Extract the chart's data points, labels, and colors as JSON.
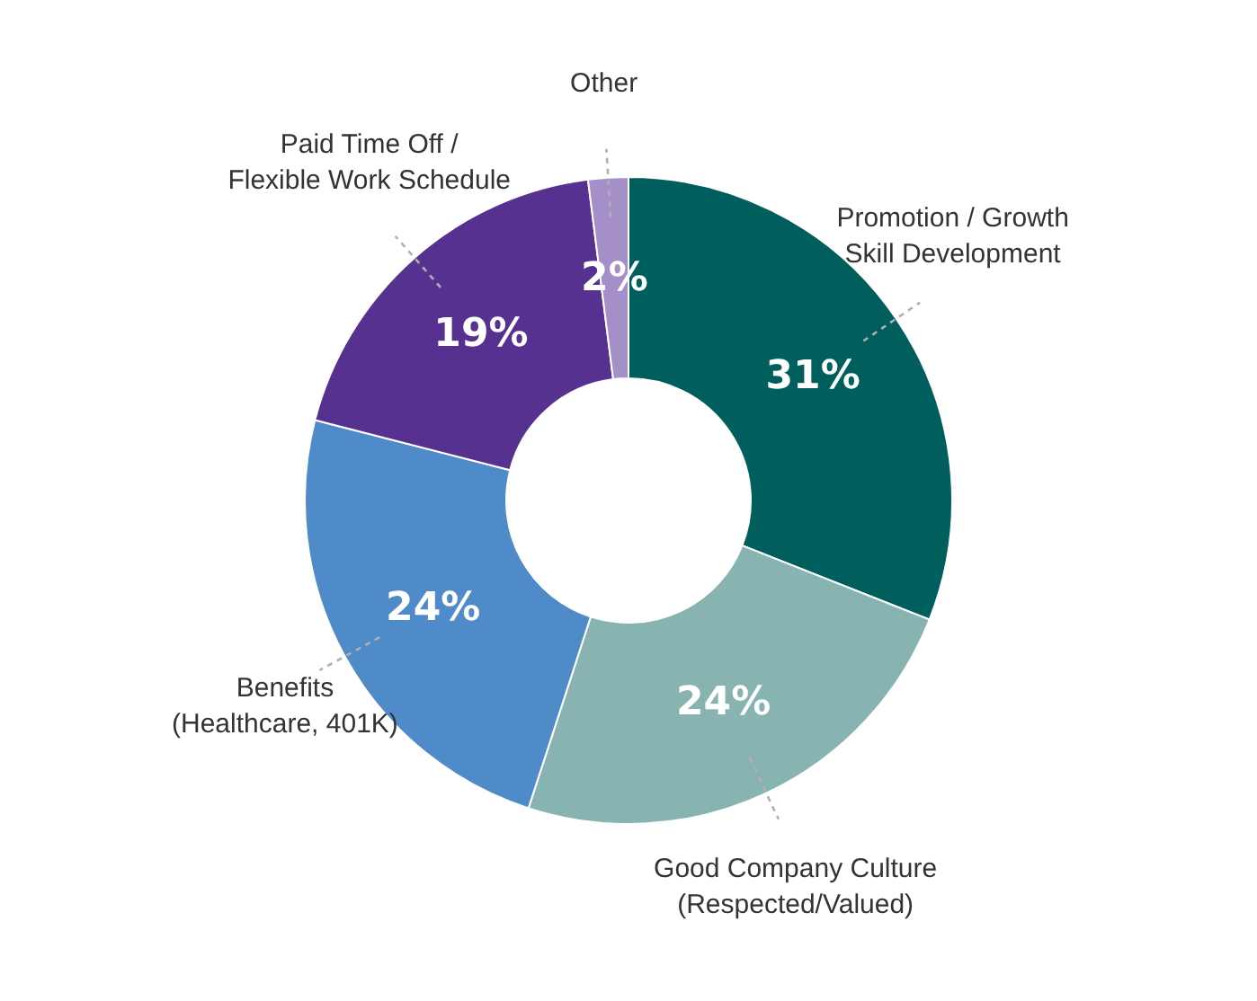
{
  "chart_data": {
    "type": "donut",
    "categories": [
      "Promotion / Growth\nSkill Development",
      "Good Company Culture\n(Respected/Valued)",
      "Benefits\n(Healthcare, 401K)",
      "Paid Time Off /\nFlexible Work Schedule",
      "Other"
    ],
    "values": [
      31,
      24,
      24,
      19,
      2
    ],
    "colors": [
      "#005f5c",
      "#87b3b0",
      "#4f8ac9",
      "#57318f",
      "#a58fc9"
    ],
    "value_labels": [
      "31%",
      "24%",
      "24%",
      "19%",
      "2%"
    ]
  }
}
